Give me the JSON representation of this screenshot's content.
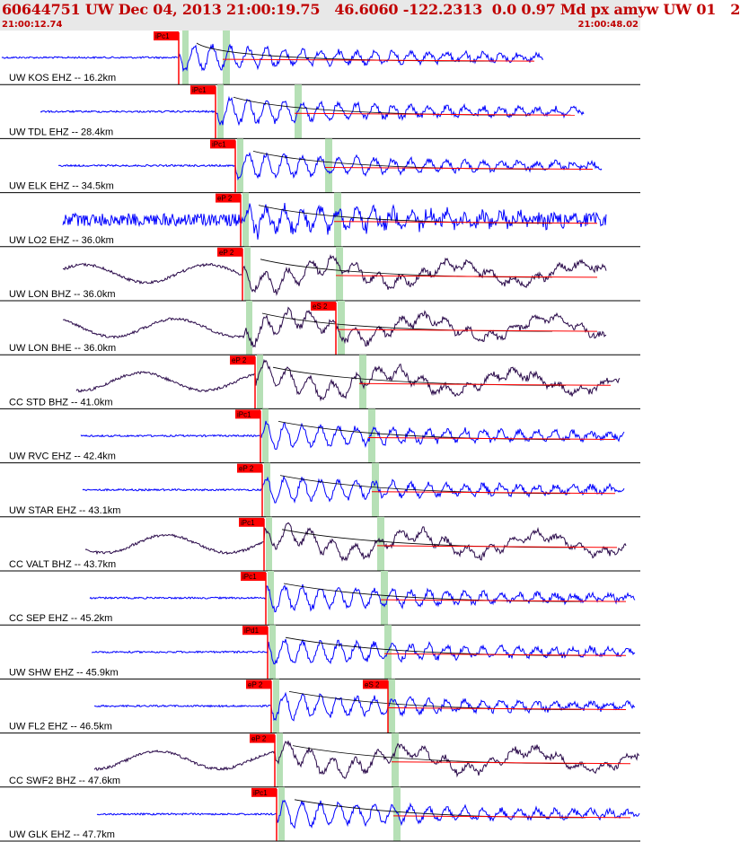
{
  "header": {
    "title": "60644751 UW Dec 04, 2013 21:00:19.75   46.6060 -122.2313  0.0 0.97 Md px amyw UW 01   2",
    "start_time": "21:00:12.74",
    "end_time": "21:00:48.02"
  },
  "colors": {
    "trace_ehz": "#0000ff",
    "trace_bh": "#2a0a4a",
    "pick_box": "#ff0000",
    "green_band": "#b6e0b6",
    "separator": "#000000"
  },
  "traces": [
    {
      "label": "UW KOS EHZ -- 16.2km",
      "p_pick": "iPc1",
      "s_pick": "",
      "type": "EHZ"
    },
    {
      "label": "UW TDL EHZ -- 28.4km",
      "p_pick": "iPc1",
      "s_pick": "",
      "type": "EHZ"
    },
    {
      "label": "UW ELK EHZ -- 34.5km",
      "p_pick": "iPc1",
      "s_pick": "",
      "type": "EHZ"
    },
    {
      "label": "UW LO2 EHZ -- 36.0km",
      "p_pick": "eP 2",
      "s_pick": "",
      "type": "EHZ"
    },
    {
      "label": "UW LON BHZ -- 36.0km",
      "p_pick": "eP 2",
      "s_pick": "",
      "type": "BH"
    },
    {
      "label": "UW LON BHE -- 36.0km",
      "p_pick": "",
      "s_pick": "eS 2",
      "type": "BH"
    },
    {
      "label": "CC STD BHZ -- 41.0km",
      "p_pick": "eP 2",
      "s_pick": "",
      "type": "BH"
    },
    {
      "label": "UW RVC EHZ -- 42.4km",
      "p_pick": "iPc1",
      "s_pick": "",
      "type": "EHZ"
    },
    {
      "label": "UW STAR EHZ -- 43.1km",
      "p_pick": "eP 2",
      "s_pick": "",
      "type": "EHZ"
    },
    {
      "label": "CC VALT BHZ -- 43.7km",
      "p_pick": "iPc1",
      "s_pick": "",
      "type": "BH"
    },
    {
      "label": "CC SEP EHZ -- 45.2km",
      "p_pick": "iPc1",
      "s_pick": "",
      "type": "EHZ"
    },
    {
      "label": "UW SHW EHZ -- 45.9km",
      "p_pick": "iPd1",
      "s_pick": "",
      "type": "EHZ"
    },
    {
      "label": "UW FL2 EHZ -- 46.5km",
      "p_pick": "eP 2",
      "s_pick": "eS 2",
      "type": "EHZ"
    },
    {
      "label": "CC SWF2 BHZ -- 47.6km",
      "p_pick": "eP 2",
      "s_pick": "",
      "type": "BH"
    },
    {
      "label": "UW GLK EHZ -- 47.7km",
      "p_pick": "iPc1",
      "s_pick": "",
      "type": "EHZ"
    }
  ]
}
